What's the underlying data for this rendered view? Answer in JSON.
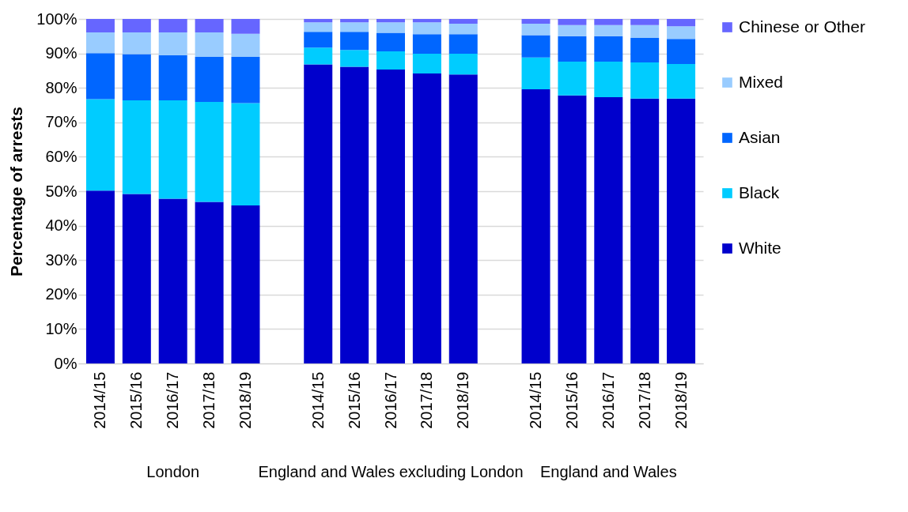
{
  "chart_data": {
    "type": "bar",
    "stacked": true,
    "ylabel": "Percentage of arrests",
    "categories": [
      "2014/15",
      "2015/16",
      "2016/17",
      "2017/18",
      "2018/19",
      null,
      "2014/15",
      "2015/16",
      "2016/17",
      "2017/18",
      "2018/19",
      null,
      "2014/15",
      "2015/16",
      "2016/17",
      "2017/18",
      "2018/19"
    ],
    "series": [
      {
        "name": "White",
        "color": "#0000cc",
        "values": [
          50.2,
          49.2,
          47.8,
          46.9,
          45.9,
          null,
          86.8,
          86.1,
          85.3,
          84.2,
          83.9,
          null,
          79.6,
          77.8,
          77.3,
          76.9,
          76.9
        ]
      },
      {
        "name": "Black",
        "color": "#00ccff",
        "values": [
          26.5,
          27.2,
          28.6,
          29.0,
          29.7,
          null,
          4.9,
          4.9,
          5.3,
          5.7,
          6.0,
          null,
          9.2,
          9.8,
          10.3,
          10.5,
          10.0
        ]
      },
      {
        "name": "Asian",
        "color": "#0066ff",
        "values": [
          13.4,
          13.4,
          13.1,
          13.1,
          13.4,
          null,
          4.6,
          5.3,
          5.4,
          5.7,
          5.7,
          null,
          6.5,
          7.4,
          7.4,
          7.1,
          7.3
        ]
      },
      {
        "name": "Mixed",
        "color": "#99ccff",
        "values": [
          6.0,
          6.3,
          6.6,
          7.1,
          6.7,
          null,
          2.7,
          2.7,
          3.0,
          3.4,
          3.0,
          null,
          3.3,
          3.2,
          3.2,
          3.7,
          3.7
        ]
      },
      {
        "name": "Chinese or Other",
        "color": "#6666ff",
        "values": [
          3.9,
          3.9,
          3.9,
          3.9,
          4.3,
          null,
          1.0,
          1.0,
          1.0,
          1.0,
          1.4,
          null,
          1.4,
          1.8,
          1.8,
          1.8,
          2.1
        ]
      }
    ],
    "ylim": [
      0,
      100
    ],
    "yticks": [
      {
        "value": 0,
        "label": "0%"
      },
      {
        "value": 10,
        "label": "10%"
      },
      {
        "value": 20,
        "label": "20%"
      },
      {
        "value": 30,
        "label": "30%"
      },
      {
        "value": 40,
        "label": "40%"
      },
      {
        "value": 50,
        "label": "50%"
      },
      {
        "value": 60,
        "label": "60%"
      },
      {
        "value": 70,
        "label": "70%"
      },
      {
        "value": 80,
        "label": "80%"
      },
      {
        "value": 90,
        "label": "90%"
      },
      {
        "value": 100,
        "label": "100%"
      }
    ],
    "grid": "y",
    "legend": "right",
    "annotations": [
      "London",
      "England and Wales excluding London",
      "England and Wales"
    ]
  }
}
